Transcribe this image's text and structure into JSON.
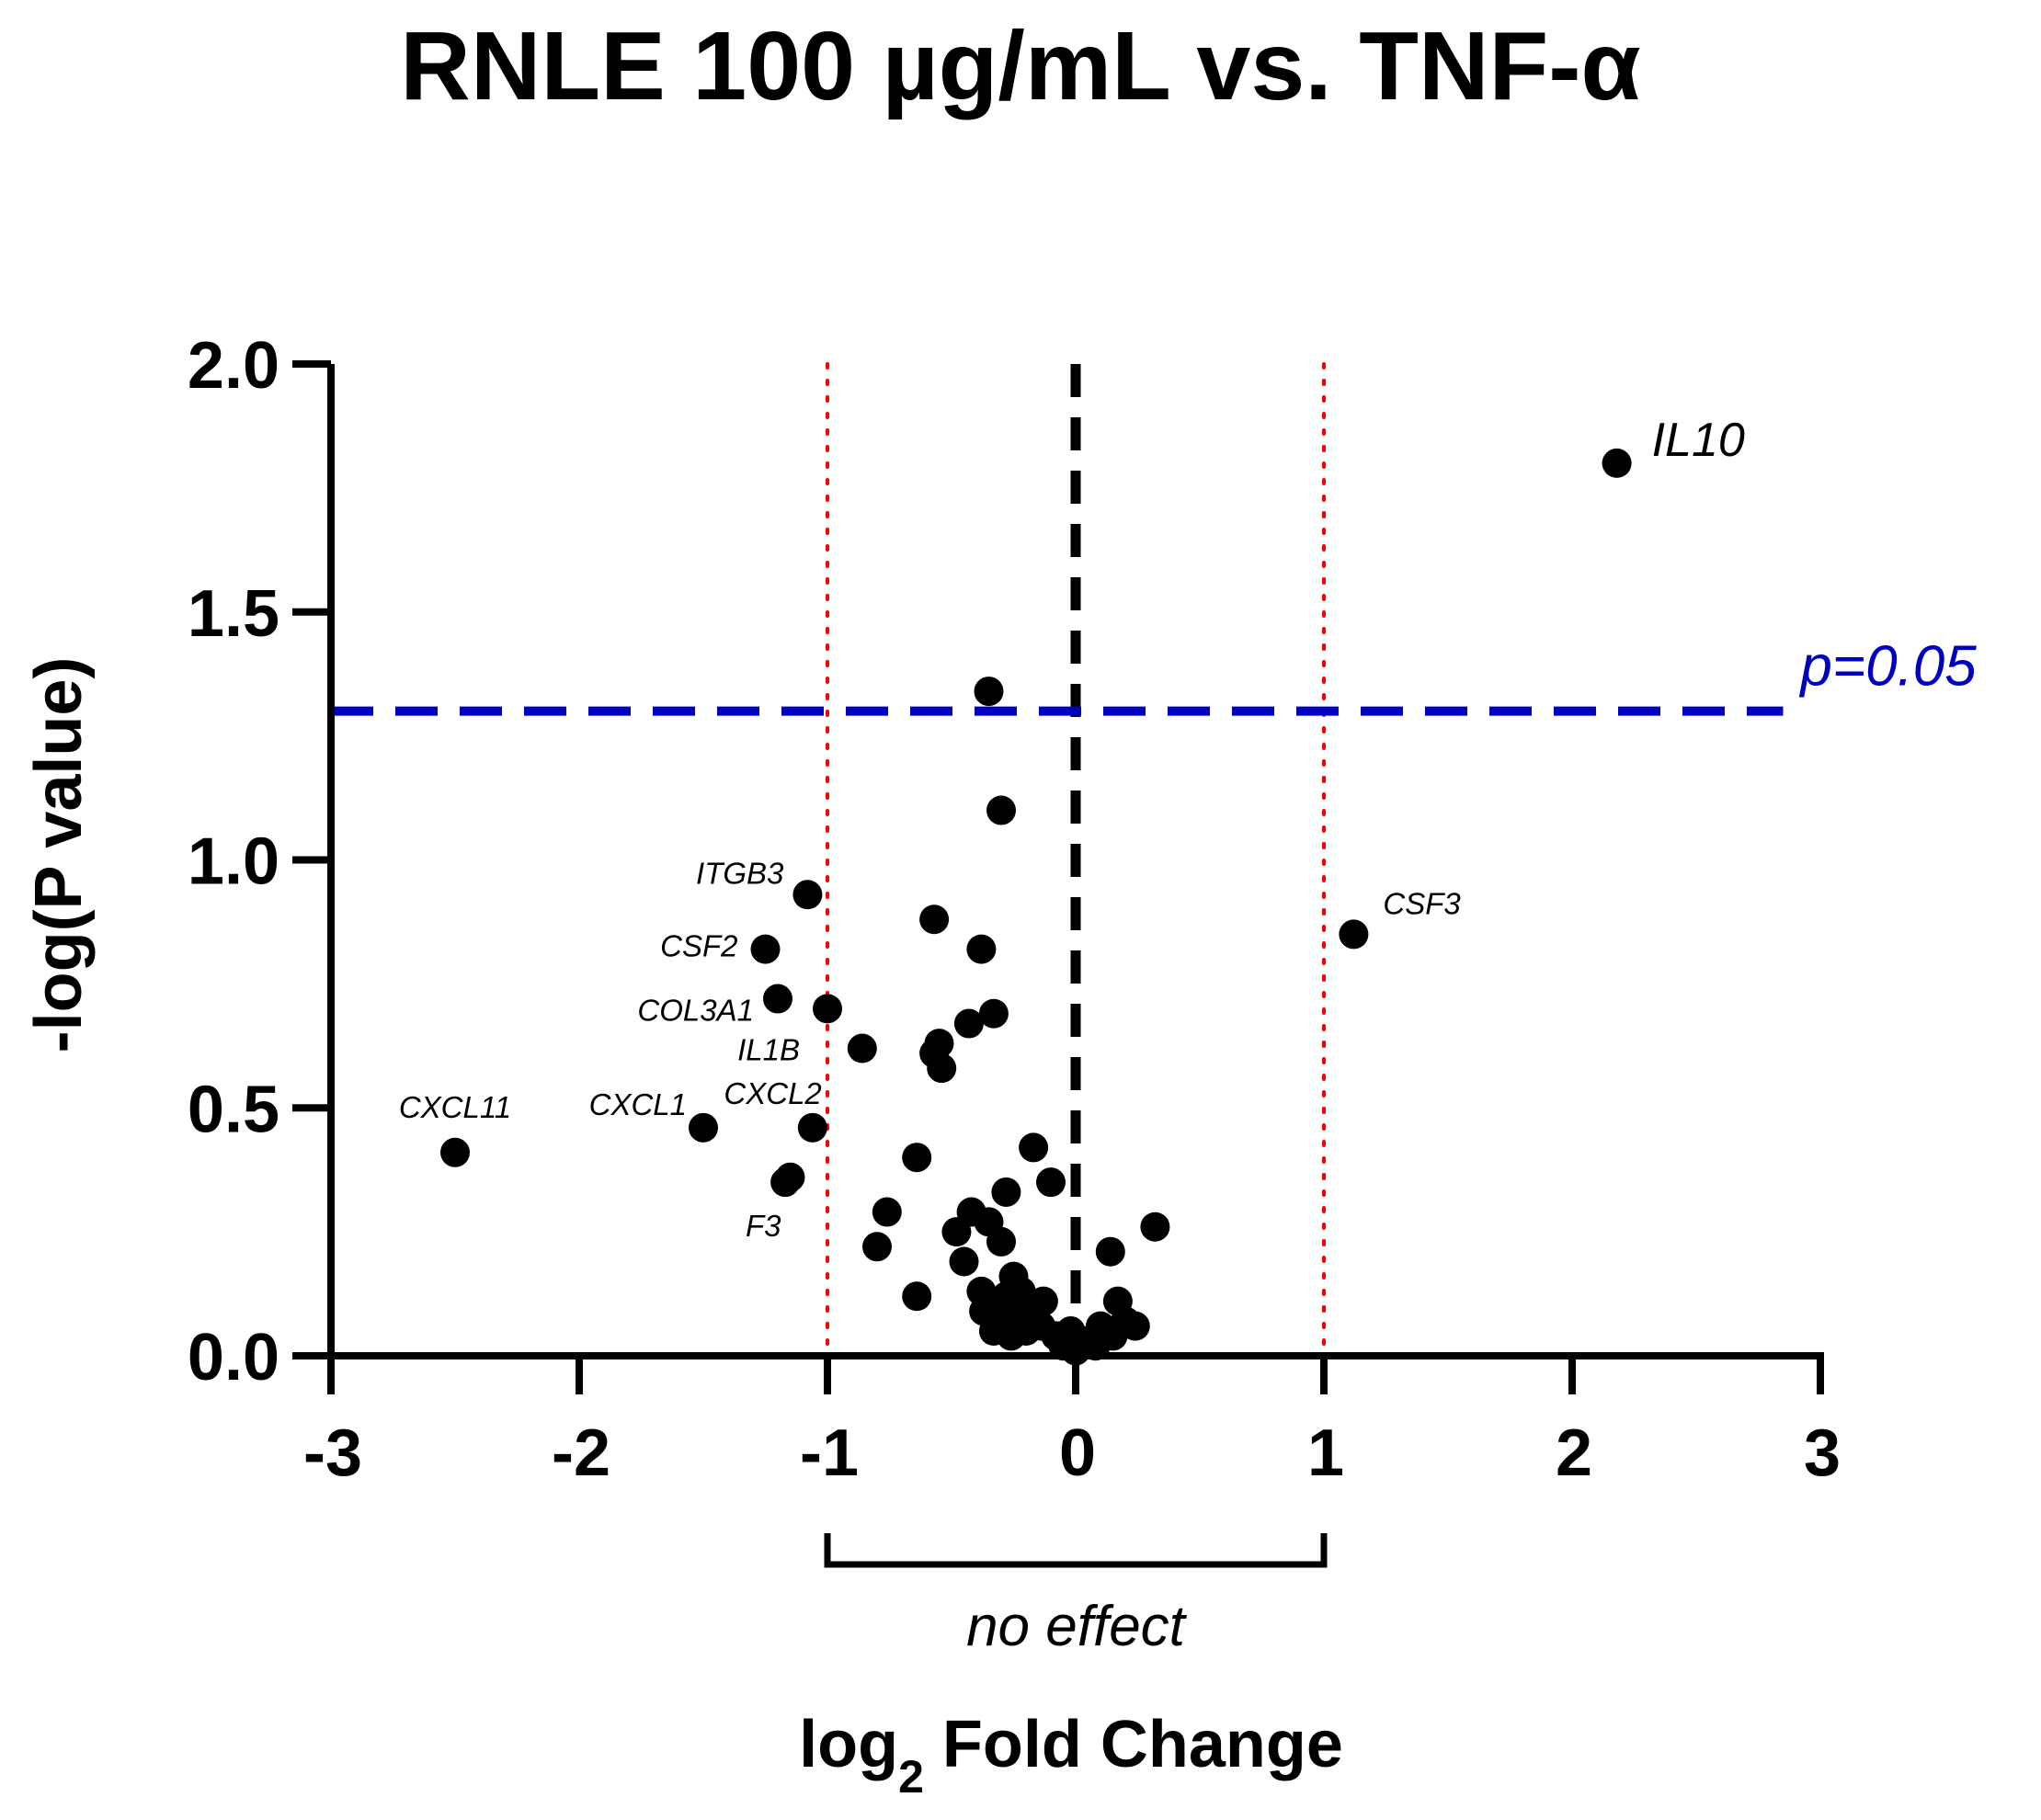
{
  "chart_data": {
    "type": "scatter",
    "title": "RNLE 100 µg/mL vs. TNF-α",
    "xlabel": {
      "main": "log",
      "sub": "2",
      "rest": " Fold Change"
    },
    "ylabel": "-log(P value)",
    "xlim": [
      -3,
      3
    ],
    "ylim": [
      0,
      2
    ],
    "xticks": [
      -3,
      -2,
      -1,
      0,
      1,
      2,
      3
    ],
    "xtick_labels": [
      "-3",
      "-2",
      "-1",
      "0",
      "1",
      "2",
      "3"
    ],
    "yticks": [
      0,
      0.5,
      1,
      1.5,
      2
    ],
    "ytick_labels": [
      "0.0",
      "0.5",
      "1.0",
      "1.5",
      "2.0"
    ],
    "grid": false,
    "threshold_line": {
      "y": 1.3,
      "label": "p=0.05",
      "color": "#0000c0"
    },
    "fold_lines": {
      "x": [
        -1,
        1
      ],
      "color": "#ff0000"
    },
    "zero_line": {
      "x": 0,
      "color": "#000000"
    },
    "bracket": {
      "x": [
        -1,
        1
      ],
      "label": "no effect"
    },
    "labeled_points": [
      {
        "gene": "IL10",
        "x": 2.18,
        "y": 1.8
      },
      {
        "gene": "CSF3",
        "x": 1.12,
        "y": 0.85
      },
      {
        "gene": "ITGB3",
        "x": -1.08,
        "y": 0.93
      },
      {
        "gene": "CSF2",
        "x": -1.25,
        "y": 0.82
      },
      {
        "gene": "COL3A1",
        "x": -1.2,
        "y": 0.72
      },
      {
        "gene": "IL1B",
        "x": -1.0,
        "y": 0.7
      },
      {
        "gene": "CXCL11",
        "x": -2.5,
        "y": 0.41
      },
      {
        "gene": "CXCL1",
        "x": -1.5,
        "y": 0.46
      },
      {
        "gene": "CXCL2",
        "x": -1.06,
        "y": 0.46
      },
      {
        "gene": "F3",
        "x": -1.15,
        "y": 0.36
      }
    ],
    "points": [
      {
        "x": -0.35,
        "y": 1.34
      },
      {
        "x": -0.3,
        "y": 1.1
      },
      {
        "x": -0.57,
        "y": 0.88
      },
      {
        "x": -0.38,
        "y": 0.82
      },
      {
        "x": -0.33,
        "y": 0.69
      },
      {
        "x": -0.43,
        "y": 0.67
      },
      {
        "x": -0.55,
        "y": 0.63
      },
      {
        "x": -0.57,
        "y": 0.61
      },
      {
        "x": -0.54,
        "y": 0.58
      },
      {
        "x": -0.86,
        "y": 0.62
      },
      {
        "x": -1.17,
        "y": 0.35
      },
      {
        "x": -0.64,
        "y": 0.4
      },
      {
        "x": -0.17,
        "y": 0.42
      },
      {
        "x": -0.1,
        "y": 0.35
      },
      {
        "x": -0.28,
        "y": 0.33
      },
      {
        "x": -0.76,
        "y": 0.29
      },
      {
        "x": -0.42,
        "y": 0.29
      },
      {
        "x": -0.35,
        "y": 0.27
      },
      {
        "x": -0.48,
        "y": 0.25
      },
      {
        "x": -0.3,
        "y": 0.23
      },
      {
        "x": 0.32,
        "y": 0.26
      },
      {
        "x": 0.14,
        "y": 0.21
      },
      {
        "x": -0.8,
        "y": 0.22
      },
      {
        "x": -0.45,
        "y": 0.19
      },
      {
        "x": -0.64,
        "y": 0.12
      },
      {
        "x": -0.25,
        "y": 0.16
      },
      {
        "x": -0.38,
        "y": 0.13
      },
      {
        "x": -0.34,
        "y": 0.11
      },
      {
        "x": -0.28,
        "y": 0.12
      },
      {
        "x": -0.22,
        "y": 0.13
      },
      {
        "x": -0.37,
        "y": 0.09
      },
      {
        "x": -0.3,
        "y": 0.08
      },
      {
        "x": -0.24,
        "y": 0.07
      },
      {
        "x": -0.18,
        "y": 0.09
      },
      {
        "x": -0.13,
        "y": 0.11
      },
      {
        "x": -0.33,
        "y": 0.05
      },
      {
        "x": -0.26,
        "y": 0.04
      },
      {
        "x": -0.2,
        "y": 0.05
      },
      {
        "x": -0.14,
        "y": 0.06
      },
      {
        "x": -0.08,
        "y": 0.04
      },
      {
        "x": -0.05,
        "y": 0.02
      },
      {
        "x": 0.0,
        "y": 0.01
      },
      {
        "x": 0.04,
        "y": 0.03
      },
      {
        "x": 0.08,
        "y": 0.02
      },
      {
        "x": 0.1,
        "y": 0.06
      },
      {
        "x": 0.17,
        "y": 0.11
      },
      {
        "x": 0.2,
        "y": 0.07
      },
      {
        "x": 0.24,
        "y": 0.06
      },
      {
        "x": 0.15,
        "y": 0.04
      },
      {
        "x": -0.02,
        "y": 0.05
      }
    ]
  }
}
